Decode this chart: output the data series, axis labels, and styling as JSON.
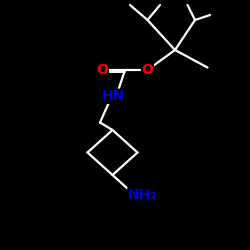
{
  "background_color": "#000000",
  "bond_color": "#ffffff",
  "O_color": "#ff0000",
  "N_color": "#0000cd",
  "NH_label": "HN",
  "NH2_label": "NH₂",
  "O_label": "O",
  "font_size_labels": 10,
  "figsize": [
    2.5,
    2.5
  ],
  "dpi": 100,
  "line_width": 1.6
}
